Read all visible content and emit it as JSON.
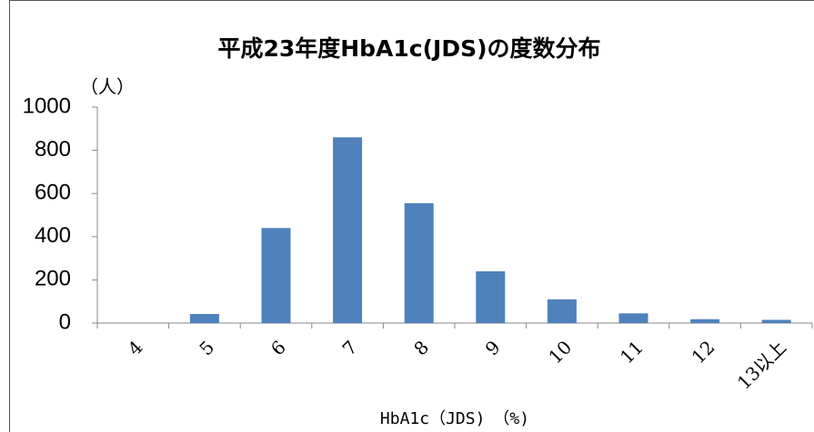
{
  "chart_data": {
    "type": "bar",
    "title": "平成23年度HbA1c(JDS)の度数分布",
    "y_label": "（人）",
    "x_label": "HbA1c（JDS)　（%)",
    "categories": [
      "4",
      "5",
      "6",
      "7",
      "8",
      "9",
      "10",
      "11",
      "12",
      "13以上"
    ],
    "values": [
      0,
      42,
      440,
      860,
      555,
      240,
      110,
      45,
      18,
      15
    ],
    "color": "#4f81bd",
    "ylim": [
      0,
      1000
    ],
    "yticks": [
      0,
      200,
      400,
      600,
      800,
      1000
    ],
    "grid": false
  }
}
